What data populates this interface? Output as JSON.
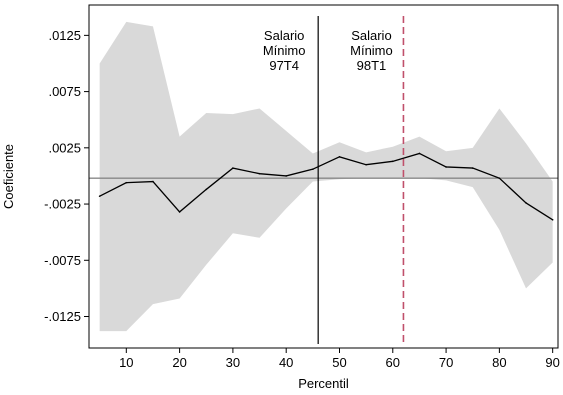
{
  "chart_data": {
    "type": "line",
    "title": "",
    "xlabel": "Percentil",
    "ylabel": "Coeficiente",
    "xlim": [
      3,
      91
    ],
    "ylim": [
      -0.0153,
      0.0152
    ],
    "xticks": [
      10,
      20,
      30,
      40,
      50,
      60,
      70,
      80,
      90
    ],
    "xtick_labels": [
      "10",
      "20",
      "30",
      "40",
      "50",
      "60",
      "70",
      "80",
      "90"
    ],
    "yticks": [
      0.0125,
      0.0075,
      0.0025,
      -0.0025,
      -0.0075,
      -0.0125
    ],
    "ytick_labels": [
      ".0125",
      ".0075",
      ".0025",
      "-.0025",
      "-.0075",
      "-.0125"
    ],
    "grid": false,
    "x": [
      5,
      10,
      15,
      20,
      25,
      30,
      35,
      40,
      45,
      50,
      55,
      60,
      65,
      70,
      75,
      80,
      85,
      90
    ],
    "series": [
      {
        "values": [
          -0.0018,
          -0.0006,
          -0.0005,
          -0.0032,
          -0.0012,
          0.0007,
          0.0002,
          0.0,
          0.0006,
          0.0017,
          0.001,
          0.0013,
          0.002,
          0.0008,
          0.0007,
          -0.0002,
          -0.0024,
          -0.0039
        ],
        "color": "#000000"
      }
    ],
    "confidence_band": {
      "upper": [
        0.01,
        0.0137,
        0.0133,
        0.0035,
        0.0056,
        0.0055,
        0.006,
        0.004,
        0.002,
        0.003,
        0.0021,
        0.0026,
        0.0035,
        0.0022,
        0.0025,
        0.006,
        0.0029,
        -0.0005
      ],
      "lower": [
        -0.0138,
        -0.0138,
        -0.0114,
        -0.0109,
        -0.0079,
        -0.0051,
        -0.0055,
        -0.0029,
        -0.0005,
        -0.0003,
        -0.0002,
        -0.0002,
        -0.0002,
        -0.0004,
        -0.001,
        -0.0048,
        -0.01,
        -0.0077
      ],
      "color": "#d9d9d9"
    },
    "reference_line": {
      "y": -0.0002,
      "color": "#888888"
    },
    "vlines": [
      {
        "x": 46,
        "style": "solid",
        "color": "#000000",
        "label": [
          "Salario",
          "Mínimo",
          "97T4"
        ]
      },
      {
        "x": 62,
        "style": "dashed",
        "color": "#c0506b",
        "label": [
          "Salario",
          "Mínimo",
          "98T1"
        ]
      }
    ]
  }
}
